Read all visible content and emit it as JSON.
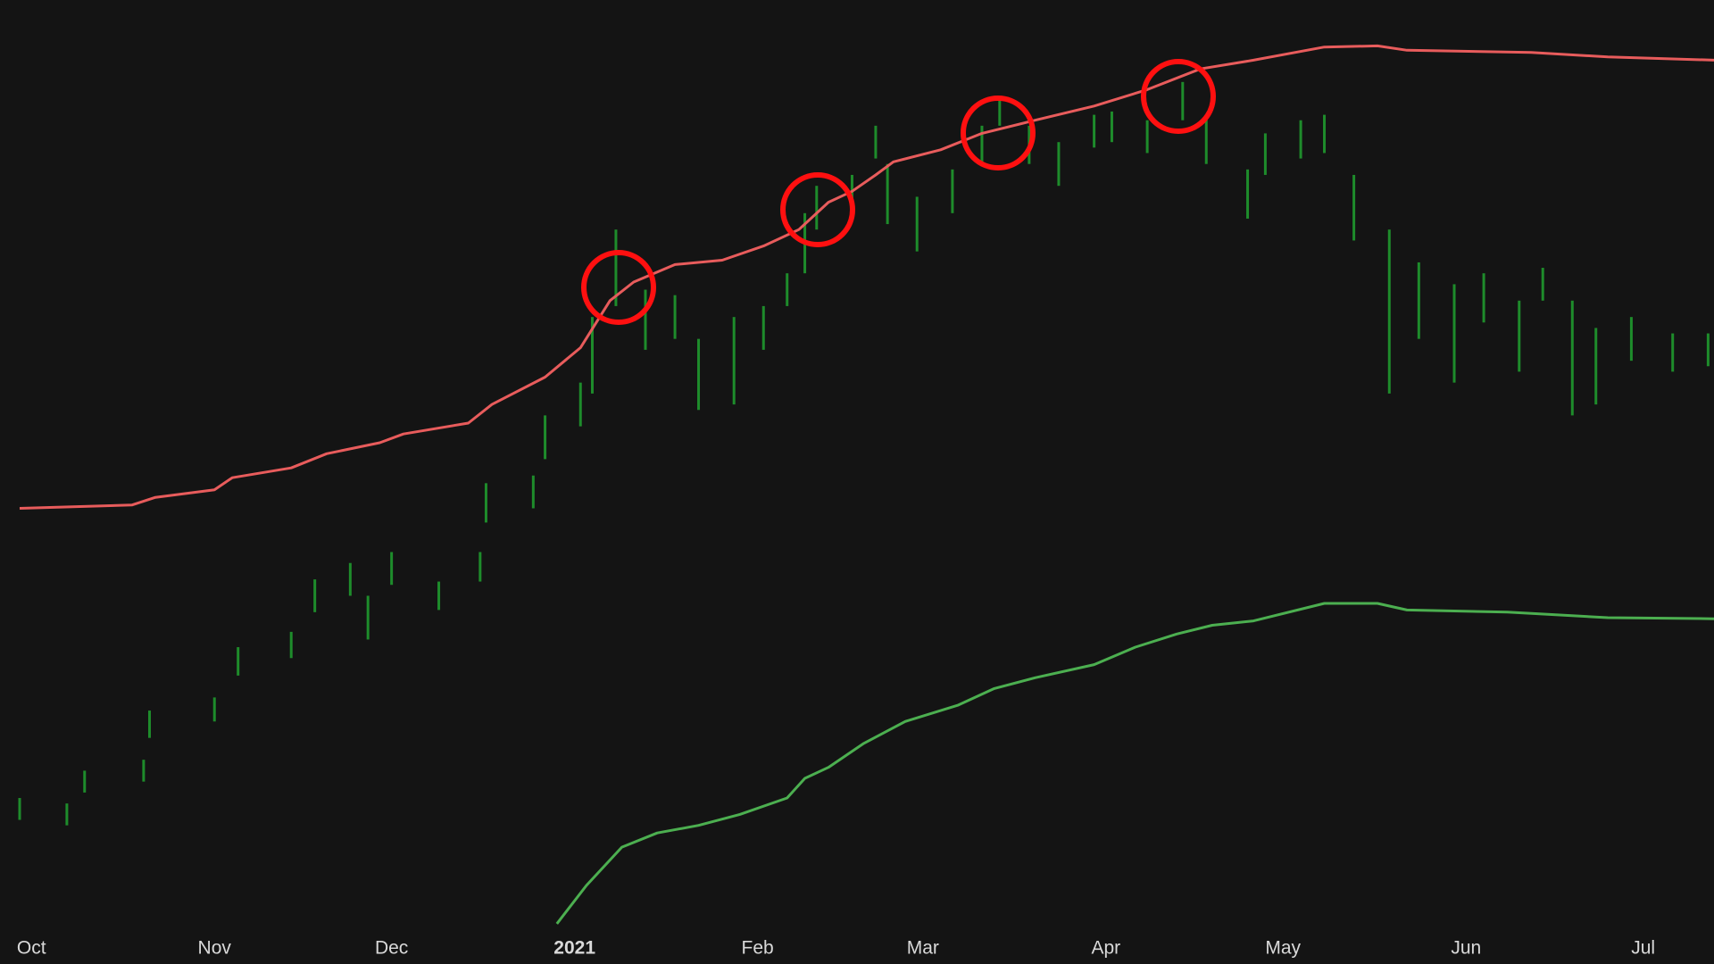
{
  "chart_data": {
    "type": "candlestick",
    "color": "#1e8c2b",
    "x": [
      -2,
      6,
      9,
      19,
      20,
      31,
      35,
      44,
      48,
      54,
      57,
      61,
      69,
      76,
      77,
      85,
      87,
      93,
      95,
      99,
      104,
      109,
      113,
      119,
      124,
      128,
      131,
      133,
      139,
      143,
      145,
      150,
      156,
      161,
      164,
      169,
      174,
      180,
      183,
      189,
      195,
      199,
      206,
      209,
      215,
      219,
      224,
      230,
      235,
      241,
      246,
      252,
      256,
      261,
      265,
      271,
      278,
      284
    ],
    "high": [
      120,
      115,
      145,
      155,
      200,
      212,
      258,
      272,
      320,
      335,
      305,
      345,
      318,
      345,
      408,
      415,
      470,
      500,
      560,
      640,
      585,
      580,
      540,
      560,
      570,
      600,
      655,
      680,
      690,
      735,
      700,
      670,
      695,
      735,
      760,
      735,
      720,
      745,
      748,
      740,
      775,
      745,
      695,
      728,
      740,
      745,
      690,
      640,
      610,
      590,
      600,
      575,
      605,
      575,
      550,
      560,
      545,
      545
    ],
    "low": [
      100,
      95,
      125,
      135,
      175,
      190,
      232,
      248,
      290,
      305,
      265,
      315,
      292,
      318,
      372,
      385,
      430,
      460,
      490,
      570,
      530,
      540,
      475,
      480,
      530,
      570,
      600,
      640,
      650,
      705,
      645,
      620,
      655,
      700,
      735,
      700,
      680,
      715,
      720,
      710,
      740,
      700,
      650,
      690,
      705,
      710,
      630,
      490,
      540,
      500,
      555,
      510,
      575,
      470,
      480,
      520,
      510,
      515
    ],
    "lines": [
      {
        "color": "#e85c5c",
        "x": [
          -2,
          17,
          21,
          31,
          34,
          44,
          50,
          59,
          63,
          74,
          78,
          87,
          93,
          98,
          102,
          109,
          117,
          124,
          130,
          135,
          139,
          143,
          146,
          154,
          161,
          170,
          180,
          189,
          198,
          207,
          219,
          228,
          233,
          254,
          267,
          285
        ],
        "values": [
          385,
          388,
          395,
          402,
          413,
          422,
          435,
          445,
          453,
          463,
          480,
          505,
          532,
          575,
          592,
          608,
          612,
          625,
          640,
          665,
          675,
          690,
          702,
          713,
          728,
          740,
          753,
          768,
          787,
          795,
          807,
          808,
          804,
          802,
          798,
          795
        ]
      },
      {
        "color": "#4caf50",
        "x": [
          89,
          94,
          100,
          106,
          113,
          120,
          128,
          131,
          135,
          141,
          148,
          157,
          163,
          170,
          180,
          187,
          194,
          200,
          207,
          219,
          228,
          233,
          250,
          267,
          285
        ],
        "values": [
          5,
          40,
          75,
          88,
          95,
          105,
          120,
          138,
          148,
          170,
          190,
          205,
          220,
          230,
          242,
          258,
          270,
          278,
          282,
          298,
          298,
          292,
          290,
          285,
          284
        ]
      }
    ],
    "xlim": [
      -2,
      285
    ],
    "ylim": [
      0,
      850
    ],
    "xticks": [
      {
        "value": 0,
        "label": "Oct"
      },
      {
        "value": 31,
        "label": "Nov"
      },
      {
        "value": 61,
        "label": "Dec"
      },
      {
        "value": 92,
        "label": "2021"
      },
      {
        "value": 123,
        "label": "Feb"
      },
      {
        "value": 151,
        "label": "Mar"
      },
      {
        "value": 182,
        "label": "Apr"
      },
      {
        "value": 212,
        "label": "May"
      },
      {
        "value": 243,
        "label": "Jun"
      },
      {
        "value": 273,
        "label": "Jul"
      }
    ]
  }
}
